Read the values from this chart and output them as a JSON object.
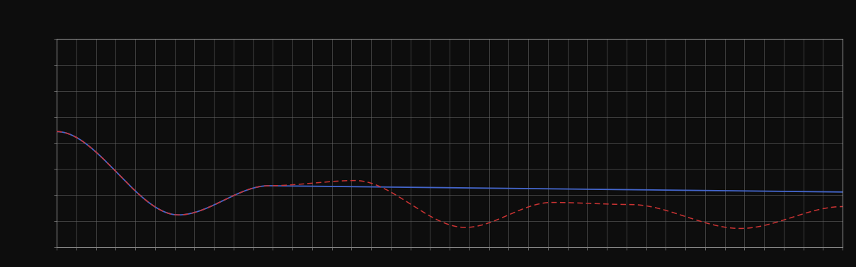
{
  "background_color": "#0d0d0d",
  "plot_bg_color": "#0d0d0d",
  "grid_color": "#666666",
  "line1_color": "#4466cc",
  "line2_color": "#cc3333",
  "figsize": [
    12.09,
    3.78
  ],
  "dpi": 100,
  "grid_alpha": 0.8,
  "n_points": 600,
  "spine_color": "#888888",
  "n_xgrid": 40,
  "n_ygrid": 8
}
